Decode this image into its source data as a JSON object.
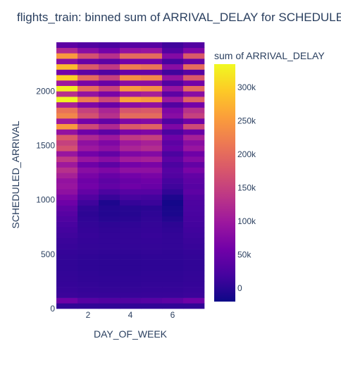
{
  "chart_data": {
    "type": "heatmap",
    "title": "flights_train: binned sum of ARRIVAL_DELAY for SCHEDULED_ARRIVAL vs DAY_OF_WEEK",
    "xlabel": "DAY_OF_WEEK",
    "ylabel": "SCHEDULED_ARRIVAL",
    "colorbar_title": "sum of ARRIVAL_DELAY",
    "x_categories": [
      1,
      2,
      3,
      4,
      5,
      6,
      7
    ],
    "xlim": [
      0.5,
      7.5
    ],
    "ylim": [
      0,
      2450
    ],
    "y_bin_size": 50,
    "x_ticks": [
      2,
      4,
      6
    ],
    "y_ticks": [
      0,
      500,
      1000,
      1500,
      2000
    ],
    "colorbar_ticks": [
      0,
      50000,
      100000,
      150000,
      200000,
      250000,
      300000
    ],
    "colorbar_tick_labels": [
      "0",
      "50k",
      "100k",
      "150k",
      "200k",
      "250k",
      "300k"
    ],
    "zlim": [
      -20000,
      335000
    ],
    "colorscale": [
      "#0d0887",
      "#46039f",
      "#7201a8",
      "#9c179e",
      "#bd3786",
      "#d8576b",
      "#ed7953",
      "#fb9f3a",
      "#fdca26",
      "#f0f921"
    ],
    "rows": [
      {
        "y": 0,
        "values": [
          5000,
          5000,
          5000,
          5000,
          5000,
          5000,
          5000
        ]
      },
      {
        "y": 50,
        "values": [
          55000,
          35000,
          30000,
          30000,
          35000,
          40000,
          55000
        ]
      },
      {
        "y": 100,
        "values": [
          12000,
          10000,
          9000,
          9000,
          10000,
          10000,
          12000
        ]
      },
      {
        "y": 150,
        "values": [
          10000,
          8000,
          7000,
          7000,
          8000,
          8000,
          10000
        ]
      },
      {
        "y": 200,
        "values": [
          8000,
          6000,
          5000,
          5000,
          6000,
          6000,
          8000
        ]
      },
      {
        "y": 250,
        "values": [
          7000,
          5000,
          4000,
          4000,
          5000,
          5000,
          7000
        ]
      },
      {
        "y": 300,
        "values": [
          6000,
          4000,
          3000,
          3000,
          4000,
          4000,
          6000
        ]
      },
      {
        "y": 350,
        "values": [
          5000,
          3000,
          2000,
          2000,
          3000,
          3000,
          5000
        ]
      },
      {
        "y": 400,
        "values": [
          5000,
          3000,
          2000,
          2000,
          3000,
          3000,
          5000
        ]
      },
      {
        "y": 450,
        "values": [
          6000,
          4000,
          3000,
          3000,
          4000,
          4000,
          6000
        ]
      },
      {
        "y": 500,
        "values": [
          8000,
          6000,
          5000,
          5000,
          6000,
          5000,
          8000
        ]
      },
      {
        "y": 550,
        "values": [
          10000,
          7000,
          6000,
          6000,
          7000,
          6000,
          10000
        ]
      },
      {
        "y": 600,
        "values": [
          12000,
          8000,
          6000,
          7000,
          8000,
          6000,
          12000
        ]
      },
      {
        "y": 650,
        "values": [
          15000,
          9000,
          6000,
          7000,
          9000,
          6000,
          14000
        ]
      },
      {
        "y": 700,
        "values": [
          18000,
          8000,
          5000,
          6000,
          8000,
          4000,
          16000
        ]
      },
      {
        "y": 750,
        "values": [
          22000,
          6000,
          3000,
          4000,
          7000,
          2000,
          18000
        ]
      },
      {
        "y": 800,
        "values": [
          28000,
          4000,
          -2000,
          0,
          5000,
          -5000,
          20000
        ]
      },
      {
        "y": 850,
        "values": [
          35000,
          2000,
          -5000,
          -3000,
          3000,
          -10000,
          22000
        ]
      },
      {
        "y": 900,
        "values": [
          42000,
          5000,
          -4000,
          -2000,
          0,
          -12000,
          24000
        ]
      },
      {
        "y": 950,
        "values": [
          55000,
          15000,
          -8000,
          8000,
          12000,
          -15000,
          26000
        ]
      },
      {
        "y": 1000,
        "values": [
          68000,
          30000,
          10000,
          20000,
          18000,
          -8000,
          30000
        ]
      },
      {
        "y": 1050,
        "values": [
          85000,
          45000,
          25000,
          35000,
          35000,
          5000,
          40000
        ]
      },
      {
        "y": 1100,
        "values": [
          95000,
          60000,
          45000,
          55000,
          50000,
          15000,
          35000
        ]
      },
      {
        "y": 1150,
        "values": [
          90000,
          55000,
          40000,
          50000,
          55000,
          20000,
          40000
        ]
      },
      {
        "y": 1200,
        "values": [
          110000,
          65000,
          50000,
          60000,
          65000,
          30000,
          45000
        ]
      },
      {
        "y": 1250,
        "values": [
          130000,
          80000,
          70000,
          85000,
          85000,
          35000,
          65000
        ]
      },
      {
        "y": 1300,
        "values": [
          100000,
          55000,
          40000,
          60000,
          65000,
          25000,
          45000
        ]
      },
      {
        "y": 1350,
        "values": [
          140000,
          95000,
          80000,
          105000,
          110000,
          40000,
          75000
        ]
      },
      {
        "y": 1400,
        "values": [
          95000,
          60000,
          45000,
          70000,
          75000,
          25000,
          55000
        ]
      },
      {
        "y": 1450,
        "values": [
          170000,
          100000,
          85000,
          115000,
          125000,
          50000,
          95000
        ]
      },
      {
        "y": 1500,
        "values": [
          150000,
          85000,
          70000,
          100000,
          110000,
          40000,
          80000
        ]
      },
      {
        "y": 1550,
        "values": [
          180000,
          120000,
          100000,
          140000,
          150000,
          55000,
          110000
        ]
      },
      {
        "y": 1600,
        "values": [
          90000,
          55000,
          40000,
          65000,
          70000,
          25000,
          50000
        ]
      },
      {
        "y": 1650,
        "values": [
          250000,
          160000,
          120000,
          180000,
          190000,
          70000,
          160000
        ]
      },
      {
        "y": 1700,
        "values": [
          100000,
          60000,
          45000,
          70000,
          75000,
          28000,
          55000
        ]
      },
      {
        "y": 1750,
        "values": [
          230000,
          170000,
          130000,
          200000,
          200000,
          80000,
          150000
        ]
      },
      {
        "y": 1800,
        "values": [
          210000,
          150000,
          115000,
          175000,
          180000,
          70000,
          130000
        ]
      },
      {
        "y": 1850,
        "values": [
          110000,
          70000,
          50000,
          80000,
          85000,
          30000,
          60000
        ]
      },
      {
        "y": 1900,
        "values": [
          330000,
          220000,
          160000,
          260000,
          250000,
          100000,
          190000
        ]
      },
      {
        "y": 1950,
        "values": [
          130000,
          90000,
          65000,
          100000,
          110000,
          40000,
          80000
        ]
      },
      {
        "y": 2000,
        "values": [
          325000,
          205000,
          155000,
          250000,
          240000,
          95000,
          200000
        ]
      },
      {
        "y": 2050,
        "values": [
          100000,
          65000,
          50000,
          80000,
          80000,
          30000,
          60000
        ]
      },
      {
        "y": 2100,
        "values": [
          300000,
          200000,
          150000,
          240000,
          230000,
          90000,
          180000
        ]
      },
      {
        "y": 2150,
        "values": [
          60000,
          40000,
          30000,
          50000,
          50000,
          15000,
          35000
        ]
      },
      {
        "y": 2200,
        "values": [
          280000,
          180000,
          140000,
          220000,
          210000,
          80000,
          200000
        ]
      },
      {
        "y": 2250,
        "values": [
          80000,
          50000,
          40000,
          60000,
          60000,
          20000,
          45000
        ]
      },
      {
        "y": 2300,
        "values": [
          250000,
          170000,
          130000,
          200000,
          200000,
          75000,
          180000
        ]
      },
      {
        "y": 2350,
        "values": [
          120000,
          80000,
          60000,
          90000,
          95000,
          30000,
          70000
        ]
      },
      {
        "y": 2400,
        "values": [
          40000,
          30000,
          25000,
          35000,
          35000,
          15000,
          30000
        ]
      }
    ]
  }
}
